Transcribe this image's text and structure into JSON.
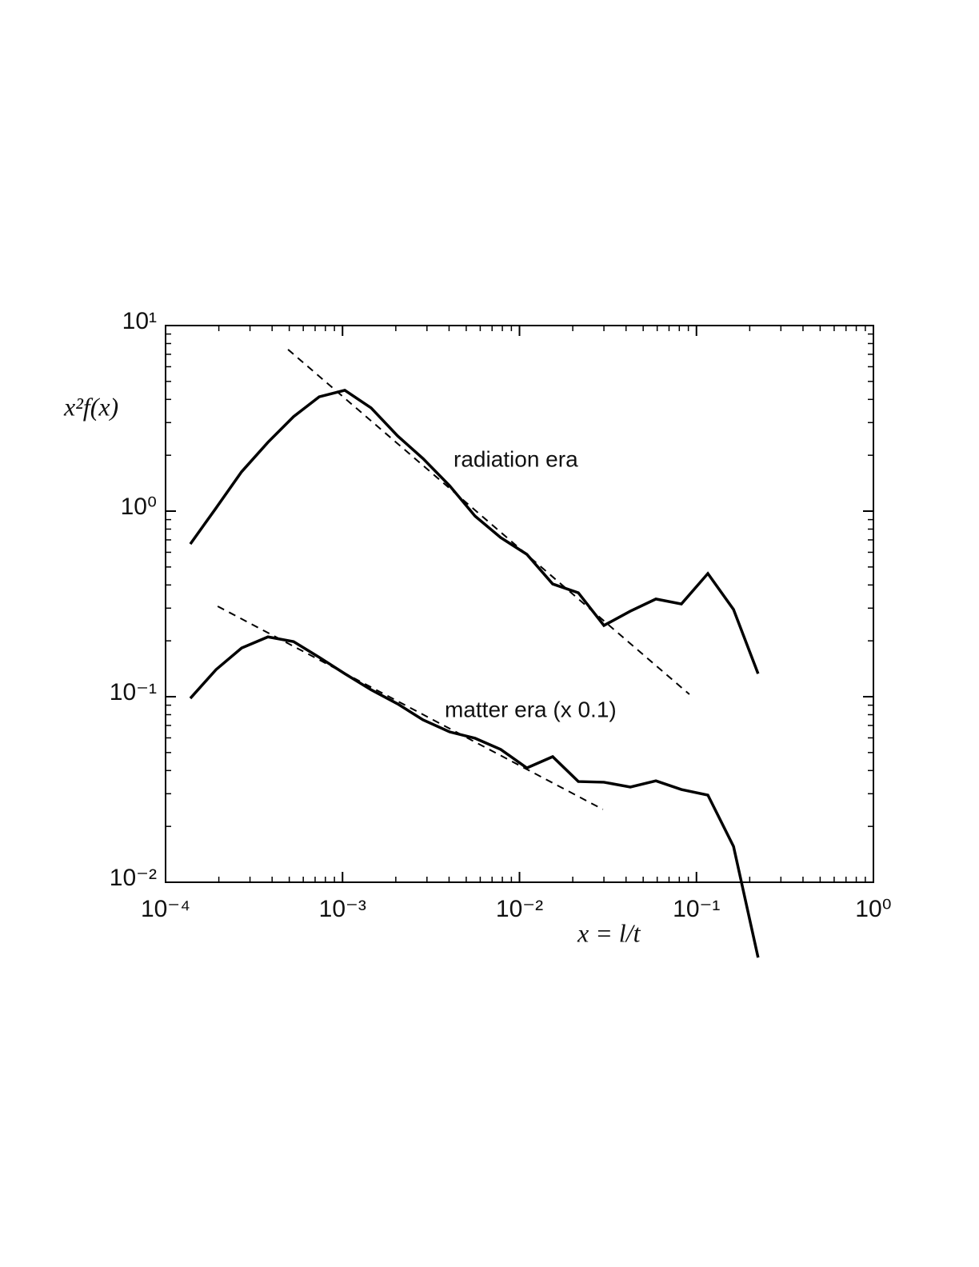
{
  "chart_data": {
    "type": "line",
    "xlabel": "x = l/t",
    "ylabel": "x²f(x)",
    "annotations": [
      "radiation era",
      "matter era (x 0.1)"
    ],
    "log_x": true,
    "log_y": true,
    "xlim": [
      0.0001,
      1
    ],
    "ylim": [
      0.01,
      10
    ],
    "xticks": [
      {
        "value": 0.0001,
        "label": "10⁻⁴"
      },
      {
        "value": 0.001,
        "label": "10⁻³"
      },
      {
        "value": 0.01,
        "label": "10⁻²"
      },
      {
        "value": 0.1,
        "label": "10⁻¹"
      },
      {
        "value": 1,
        "label": "10⁰"
      }
    ],
    "yticks": [
      {
        "value": 0.01,
        "label": "10⁻²"
      },
      {
        "value": 0.1,
        "label": "10⁻¹"
      },
      {
        "value": 1,
        "label": "10⁰"
      },
      {
        "value": 10,
        "label": "10¹"
      }
    ],
    "series": [
      {
        "color": "#000000",
        "dashed": false,
        "x": [
          0.000138,
          0.000193,
          0.000269,
          0.000379,
          0.000529,
          0.000738,
          0.00103,
          0.00145,
          0.00205,
          0.00285,
          0.00403,
          0.00561,
          0.00783,
          0.011,
          0.0154,
          0.0215,
          0.03,
          0.0423,
          0.059,
          0.0822,
          0.116,
          0.162,
          0.223
        ],
        "values": [
          0.665,
          1.04,
          1.63,
          2.35,
          3.23,
          4.13,
          4.48,
          3.6,
          2.54,
          1.92,
          1.37,
          0.94,
          0.72,
          0.585,
          0.405,
          0.363,
          0.242,
          0.289,
          0.336,
          0.316,
          0.461,
          0.295,
          0.133
        ]
      },
      {
        "color": "#000000",
        "dashed": false,
        "x": [
          0.000138,
          0.000193,
          0.000269,
          0.000379,
          0.000529,
          0.000738,
          0.00103,
          0.00145,
          0.00205,
          0.00285,
          0.00403,
          0.00561,
          0.00783,
          0.011,
          0.0154,
          0.0215,
          0.03,
          0.0423,
          0.059,
          0.0822,
          0.116,
          0.162,
          0.223
        ],
        "values": [
          0.098,
          0.14,
          0.183,
          0.21,
          0.198,
          0.163,
          0.133,
          0.109,
          0.0914,
          0.075,
          0.0646,
          0.0597,
          0.052,
          0.0413,
          0.0475,
          0.0349,
          0.0346,
          0.0326,
          0.0352,
          0.0316,
          0.0295,
          0.0156,
          0.00393
        ]
      },
      {
        "color": "#000000",
        "dashed": true,
        "x": [
          0.000492,
          0.0912
        ],
        "values": [
          7.43,
          0.103
        ]
      },
      {
        "color": "#000000",
        "dashed": true,
        "x": [
          0.000197,
          0.0296
        ],
        "values": [
          0.307,
          0.0247
        ]
      }
    ]
  }
}
